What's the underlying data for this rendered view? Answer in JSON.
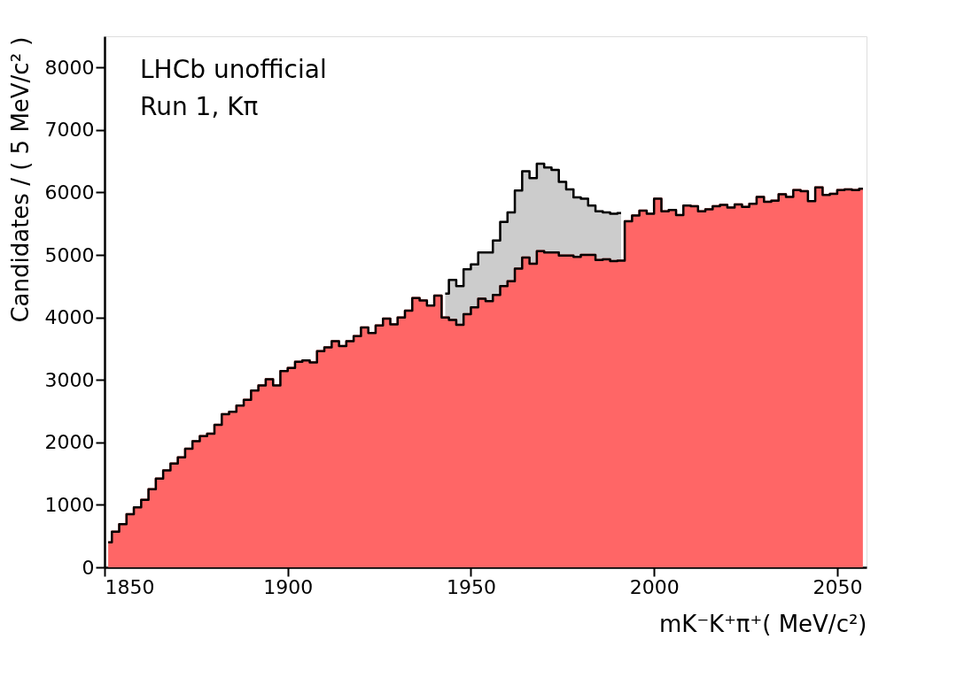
{
  "chart_data": {
    "type": "area",
    "stacked": true,
    "line_style": "solid",
    "xlabel": "mK⁻K⁺π⁺( MeV/c²)",
    "ylabel": "Candidates / ( 5 MeV/c² )",
    "annotations": [
      "LHCb unofficial",
      "Run 1, Kπ"
    ],
    "x": [
      1851,
      1853,
      1855,
      1857,
      1859,
      1861,
      1863,
      1865,
      1867,
      1869,
      1871,
      1873,
      1875,
      1877,
      1879,
      1881,
      1883,
      1885,
      1887,
      1889,
      1891,
      1893,
      1895,
      1897,
      1899,
      1901,
      1903,
      1905,
      1907,
      1909,
      1911,
      1913,
      1915,
      1917,
      1919,
      1921,
      1923,
      1925,
      1927,
      1929,
      1931,
      1933,
      1935,
      1937,
      1939,
      1941,
      1943,
      1945,
      1947,
      1949,
      1951,
      1953,
      1955,
      1957,
      1959,
      1961,
      1963,
      1965,
      1967,
      1969,
      1971,
      1973,
      1975,
      1977,
      1979,
      1981,
      1983,
      1985,
      1987,
      1989,
      1991,
      1993,
      1995,
      1997,
      1999,
      2001,
      2003,
      2005,
      2007,
      2009,
      2011,
      2013,
      2015,
      2017,
      2019,
      2021,
      2023,
      2025,
      2027,
      2029,
      2031,
      2033,
      2035,
      2037,
      2039,
      2041,
      2043,
      2045,
      2047,
      2049,
      2051,
      2053,
      2055,
      2057
    ],
    "series": [
      {
        "color": "#ff6666",
        "values": [
          400,
          570,
          690,
          850,
          960,
          1080,
          1250,
          1420,
          1550,
          1660,
          1760,
          1900,
          2020,
          2100,
          2140,
          2280,
          2450,
          2490,
          2590,
          2680,
          2830,
          2910,
          3010,
          2910,
          3140,
          3190,
          3290,
          3310,
          3280,
          3460,
          3520,
          3620,
          3540,
          3620,
          3700,
          3840,
          3750,
          3870,
          3980,
          3890,
          4000,
          4110,
          4310,
          4270,
          4190,
          4350,
          4000,
          3960,
          3880,
          4050,
          4160,
          4300,
          4260,
          4360,
          4500,
          4580,
          4780,
          4960,
          4860,
          5060,
          5040,
          5040,
          4990,
          4990,
          4970,
          5000,
          5000,
          4920,
          4930,
          4900,
          4910,
          5540,
          5630,
          5710,
          5660,
          5900,
          5700,
          5720,
          5640,
          5790,
          5780,
          5700,
          5730,
          5780,
          5800,
          5760,
          5810,
          5770,
          5820,
          5930,
          5850,
          5870,
          5970,
          5930,
          6040,
          6020,
          5860,
          6080,
          5960,
          5980,
          6040,
          6050,
          6040,
          6060
        ]
      },
      {
        "color": "#cccccc",
        "values": [
          null,
          null,
          null,
          null,
          null,
          null,
          null,
          null,
          null,
          null,
          null,
          null,
          null,
          null,
          null,
          null,
          null,
          null,
          null,
          null,
          null,
          null,
          null,
          null,
          null,
          null,
          null,
          null,
          null,
          null,
          null,
          null,
          null,
          null,
          null,
          null,
          null,
          null,
          null,
          null,
          null,
          null,
          null,
          null,
          null,
          null,
          380,
          640,
          620,
          720,
          690,
          740,
          780,
          870,
          1030,
          1100,
          1250,
          1380,
          1370,
          1400,
          1360,
          1320,
          1180,
          1060,
          950,
          900,
          790,
          780,
          750,
          760,
          760,
          null,
          null,
          null,
          null,
          null,
          null,
          null,
          null,
          null,
          null,
          null,
          null,
          null,
          null,
          null,
          null,
          null,
          null,
          null,
          null,
          null,
          null,
          null,
          null,
          null,
          null,
          null,
          null,
          null,
          null,
          null,
          null,
          null
        ]
      }
    ],
    "xlim": [
      1850,
      2058
    ],
    "xticks": [
      1850,
      1900,
      1950,
      2000,
      2050
    ],
    "ylim": [
      0,
      8500
    ],
    "yticks": [
      0,
      1000,
      2000,
      3000,
      4000,
      5000,
      6000,
      7000,
      8000
    ],
    "legend": false,
    "grid": false
  }
}
